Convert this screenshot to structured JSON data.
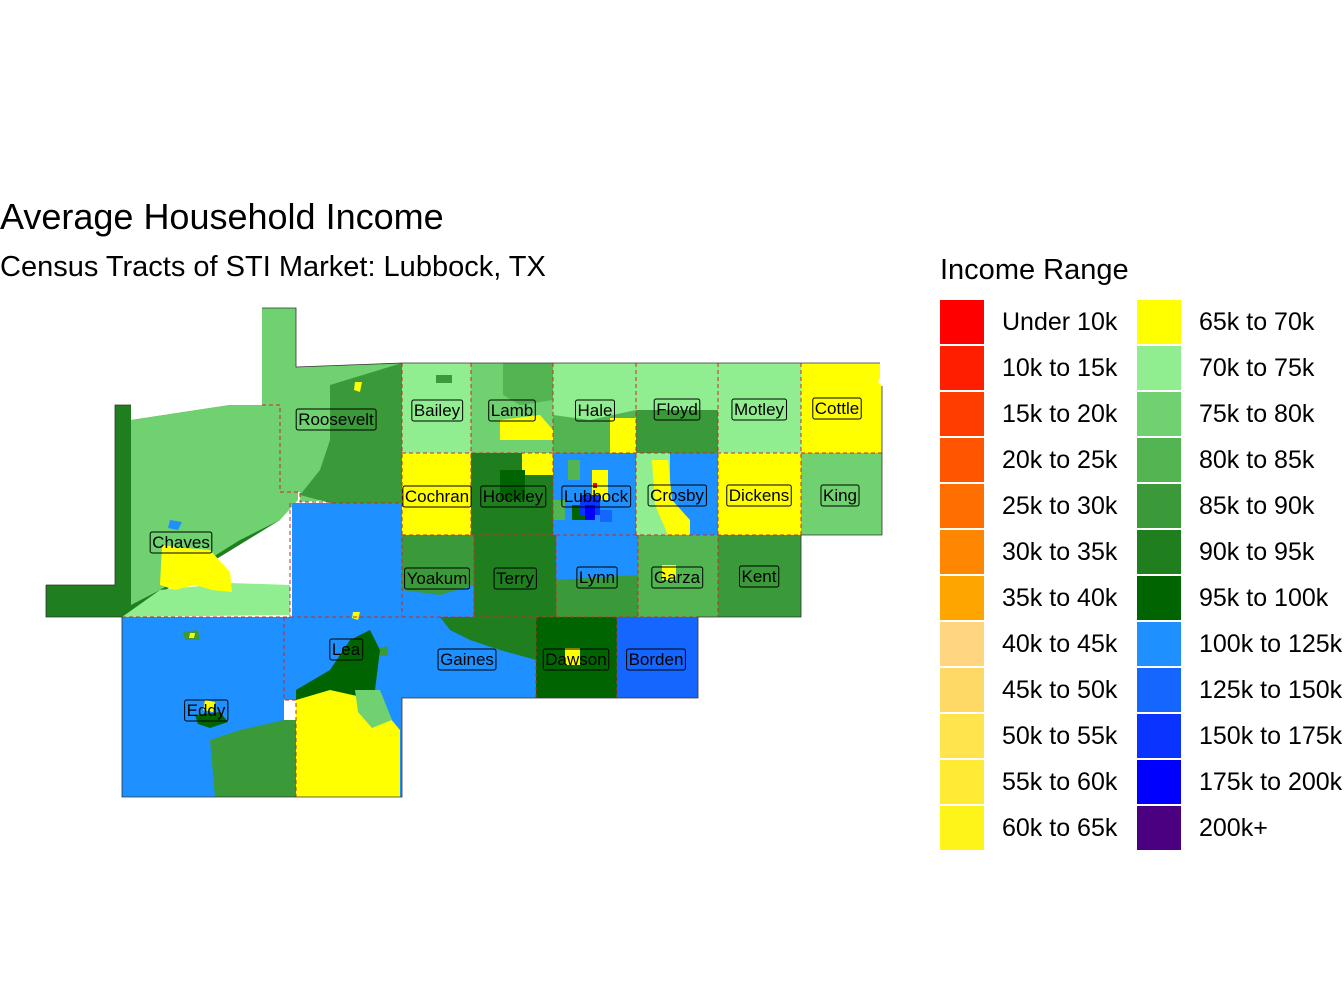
{
  "title": "Average Household Income",
  "subtitle": "Census Tracts of STI Market: Lubbock, TX",
  "legend": {
    "title": "Income Range",
    "items": [
      {
        "label": "Under 10k",
        "color": "#FF0000"
      },
      {
        "label": "10k to 15k",
        "color": "#FF1F00"
      },
      {
        "label": "15k to 20k",
        "color": "#FF3D00"
      },
      {
        "label": "20k to 25k",
        "color": "#FF5500"
      },
      {
        "label": "25k to 30k",
        "color": "#FF6E00"
      },
      {
        "label": "30k to 35k",
        "color": "#FF8600"
      },
      {
        "label": "35k to 40k",
        "color": "#FFA500"
      },
      {
        "label": "40k to 45k",
        "color": "#FFD580"
      },
      {
        "label": "45k to 50k",
        "color": "#FFD966"
      },
      {
        "label": "50k to 55k",
        "color": "#FFE44D"
      },
      {
        "label": "55k to 60k",
        "color": "#FFEB33"
      },
      {
        "label": "60k to 65k",
        "color": "#FFF41A"
      },
      {
        "label": "65k to 70k",
        "color": "#FFFF00"
      },
      {
        "label": "70k to 75k",
        "color": "#90EE90"
      },
      {
        "label": "75k to 80k",
        "color": "#6FD16F"
      },
      {
        "label": "80k to 85k",
        "color": "#52B552"
      },
      {
        "label": "85k to 90k",
        "color": "#3A9A3A"
      },
      {
        "label": "90k to 95k",
        "color": "#1F7F1F"
      },
      {
        "label": "95k to 100k",
        "color": "#006400"
      },
      {
        "label": "100k to 125k",
        "color": "#1E90FF"
      },
      {
        "label": "125k to 150k",
        "color": "#1466FF"
      },
      {
        "label": "150k to 175k",
        "color": "#0A33FF"
      },
      {
        "label": "175k to 200k",
        "color": "#0000FF"
      },
      {
        "label": "200k+",
        "color": "#4B0082"
      }
    ]
  },
  "counties": [
    {
      "name": "Roosevelt"
    },
    {
      "name": "Bailey"
    },
    {
      "name": "Lamb"
    },
    {
      "name": "Hale"
    },
    {
      "name": "Floyd"
    },
    {
      "name": "Motley"
    },
    {
      "name": "Cottle"
    },
    {
      "name": "Chaves"
    },
    {
      "name": "Cochran"
    },
    {
      "name": "Hockley"
    },
    {
      "name": "Lubbock"
    },
    {
      "name": "Crosby"
    },
    {
      "name": "Dickens"
    },
    {
      "name": "King"
    },
    {
      "name": "Yoakum"
    },
    {
      "name": "Terry"
    },
    {
      "name": "Lynn"
    },
    {
      "name": "Garza"
    },
    {
      "name": "Kent"
    },
    {
      "name": "Lea"
    },
    {
      "name": "Gaines"
    },
    {
      "name": "Dawson"
    },
    {
      "name": "Borden"
    },
    {
      "name": "Eddy"
    }
  ]
}
